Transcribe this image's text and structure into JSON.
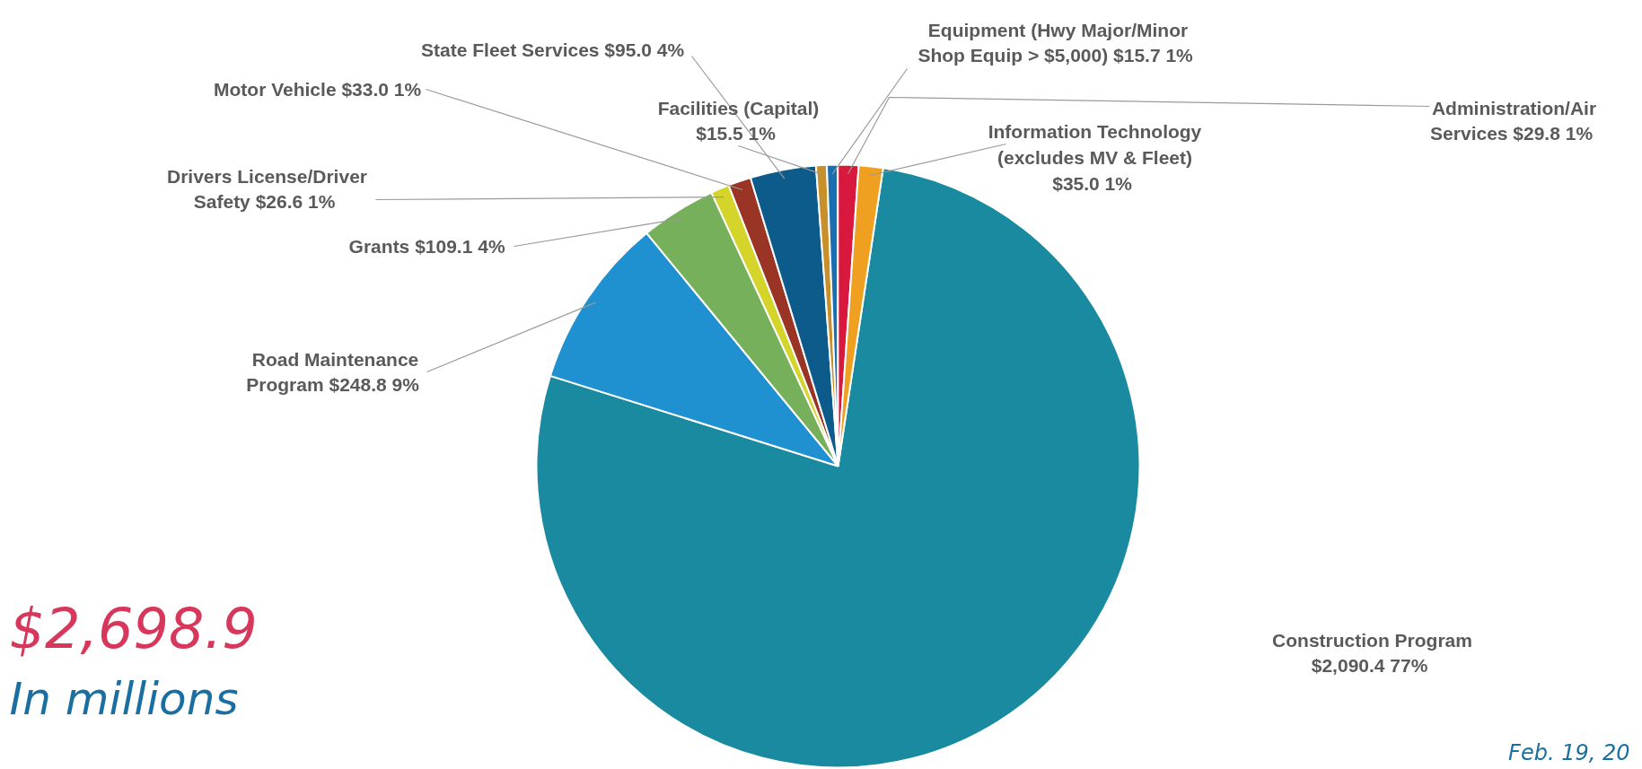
{
  "chart_data": {
    "type": "pie",
    "categories": [
      "Construction Program",
      "Road Maintenance\nProgram",
      "Grants",
      "Drivers License/Driver\nSafety",
      "Motor Vehicle",
      "State Fleet Services",
      "Facilities (Capital)",
      "Equipment (Hwy Major/Minor\nShop Equip > $5,000)",
      "Administration/Air\nServices",
      "Information Technology\n(excludes MV & Fleet)"
    ],
    "values": [
      2090.4,
      248.8,
      109.1,
      26.6,
      33.0,
      95.0,
      15.5,
      15.7,
      29.8,
      35.0
    ],
    "colors": [
      "#1a8aa0",
      "#1f90d0",
      "#76b05a",
      "#d4d42a",
      "#9a3424",
      "#0c5b8a",
      "#c8902a",
      "#1a6fb0",
      "#d8183c",
      "#f0a020"
    ],
    "value_labels": [
      "$2,090.4  77%",
      "$248.8  9%",
      "$109.1  4%",
      "$26.6  1%",
      "$33.0  1%",
      "$95.0  4%",
      "$15.5  1%",
      "$15.7  1%",
      "$29.8  1%",
      "$35.0  1%"
    ],
    "annotations": [
      "$2,698.9",
      "In millions",
      "Feb. 19, 20"
    ]
  }
}
